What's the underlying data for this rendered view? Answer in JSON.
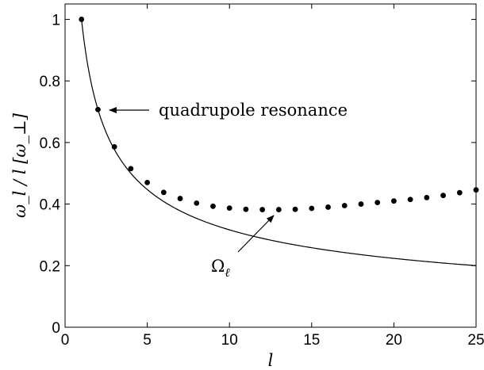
{
  "chart_data": {
    "type": "scatter",
    "title": "",
    "xlabel": "l",
    "ylabel": "ω_l / l [ω_⊥]",
    "xlim": [
      0,
      25
    ],
    "ylim": [
      0,
      1.05
    ],
    "xticks": [
      0,
      5,
      10,
      15,
      20,
      25
    ],
    "yticks": [
      0,
      0.2,
      0.4,
      0.6,
      0.8,
      1
    ],
    "xtick_labels": [
      "0",
      "5",
      "10",
      "15",
      "20",
      "25"
    ],
    "ytick_labels": [
      "0",
      "0.2",
      "0.4",
      "0.6",
      "0.8",
      "1"
    ],
    "grid": false,
    "legend": "none",
    "series": [
      {
        "kind": "points",
        "x": [
          1,
          2,
          3,
          4,
          5,
          6,
          7,
          8,
          9,
          10,
          11,
          12,
          13,
          14,
          15,
          16,
          17,
          18,
          19,
          20,
          21,
          22,
          23,
          24,
          25
        ],
        "y": [
          1.0,
          0.707,
          0.586,
          0.515,
          0.47,
          0.438,
          0.418,
          0.403,
          0.393,
          0.387,
          0.383,
          0.382,
          0.382,
          0.383,
          0.386,
          0.39,
          0.395,
          0.4,
          0.405,
          0.41,
          0.415,
          0.421,
          0.428,
          0.437,
          0.446
        ]
      },
      {
        "kind": "curve",
        "formula": "1/sqrt(l)",
        "x_range": [
          1,
          25
        ]
      }
    ],
    "annotations": [
      {
        "label": "quadrupole resonance",
        "target": [
          2,
          0.707
        ]
      },
      {
        "label_main": "Ω",
        "label_sub": "ℓ",
        "target": [
          13,
          0.382
        ]
      }
    ]
  }
}
